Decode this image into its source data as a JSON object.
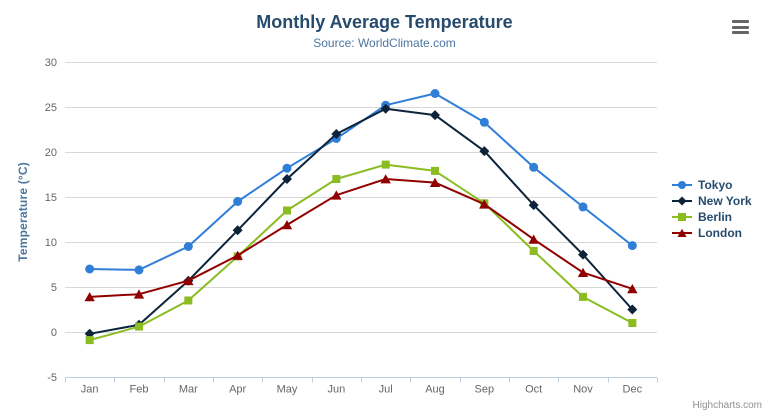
{
  "header": {
    "title": "Monthly Average Temperature",
    "subtitle": "Source: WorldClimate.com"
  },
  "chart_data": {
    "type": "line",
    "categories": [
      "Jan",
      "Feb",
      "Mar",
      "Apr",
      "May",
      "Jun",
      "Jul",
      "Aug",
      "Sep",
      "Oct",
      "Nov",
      "Dec"
    ],
    "series": [
      {
        "name": "Tokyo",
        "color": "#2f7ed8",
        "marker": "circle",
        "values": [
          7.0,
          6.9,
          9.5,
          14.5,
          18.2,
          21.5,
          25.2,
          26.5,
          23.3,
          18.3,
          13.9,
          9.6
        ]
      },
      {
        "name": "New York",
        "color": "#0d233a",
        "marker": "diamond",
        "values": [
          -0.2,
          0.8,
          5.7,
          11.3,
          17.0,
          22.0,
          24.8,
          24.1,
          20.1,
          14.1,
          8.6,
          2.5
        ]
      },
      {
        "name": "Berlin",
        "color": "#8bbc21",
        "marker": "square",
        "values": [
          -0.9,
          0.6,
          3.5,
          8.4,
          13.5,
          17.0,
          18.6,
          17.9,
          14.3,
          9.0,
          3.9,
          1.0
        ]
      },
      {
        "name": "London",
        "color": "#910000",
        "marker": "triangle",
        "values": [
          3.9,
          4.2,
          5.7,
          8.5,
          11.9,
          15.2,
          17.0,
          16.6,
          14.2,
          10.3,
          6.6,
          4.8
        ]
      }
    ],
    "title": "Monthly Average Temperature",
    "subtitle": "Source: WorldClimate.com",
    "xlabel": "",
    "ylabel": "Temperature (°C)",
    "ylim": [
      -5,
      30
    ],
    "ytick_step": 5,
    "grid": true,
    "legend_position": "right"
  },
  "credit": {
    "label": "Highcharts.com"
  },
  "colors": {
    "title": "#274b6d",
    "subtitle": "#4d759e",
    "axis_title": "#4d759e",
    "axis_label": "#666666",
    "gridline": "#d8d8d8",
    "axis_line": "#c0d0e0",
    "tick": "#c0d0e0",
    "legend_text": "#274b6d",
    "credit": "#909090",
    "export_icon": "#666666"
  }
}
